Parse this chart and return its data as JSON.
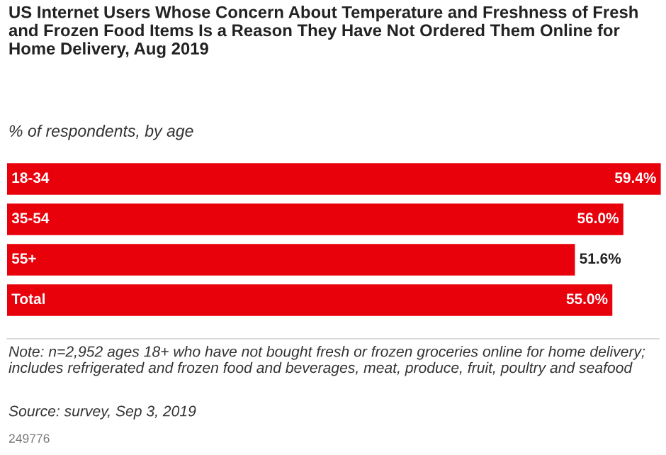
{
  "chart_data": {
    "type": "bar",
    "orientation": "horizontal",
    "title": "US Internet Users Whose Concern About Temperature and Freshness of Fresh and Frozen Food Items Is a Reason They Have Not Ordered Them Online for Home Delivery, Aug 2019",
    "subtitle": "% of respondents, by age",
    "categories": [
      "18-34",
      "35-54",
      "55+",
      "Total"
    ],
    "values": [
      59.4,
      56.0,
      51.6,
      55.0
    ],
    "value_labels": [
      "59.4%",
      "56.0%",
      "51.6%",
      "55.0%"
    ],
    "color": "#e8000b",
    "annotations": [
      "Note: n=2,952 ages 18+ who have not bought fresh or frozen groceries online for home delivery; includes refrigerated and frozen food and beverages, meat, produce, fruit, poultry and seafood",
      "Source: survey, Sep 3, 2019",
      "249776"
    ]
  }
}
